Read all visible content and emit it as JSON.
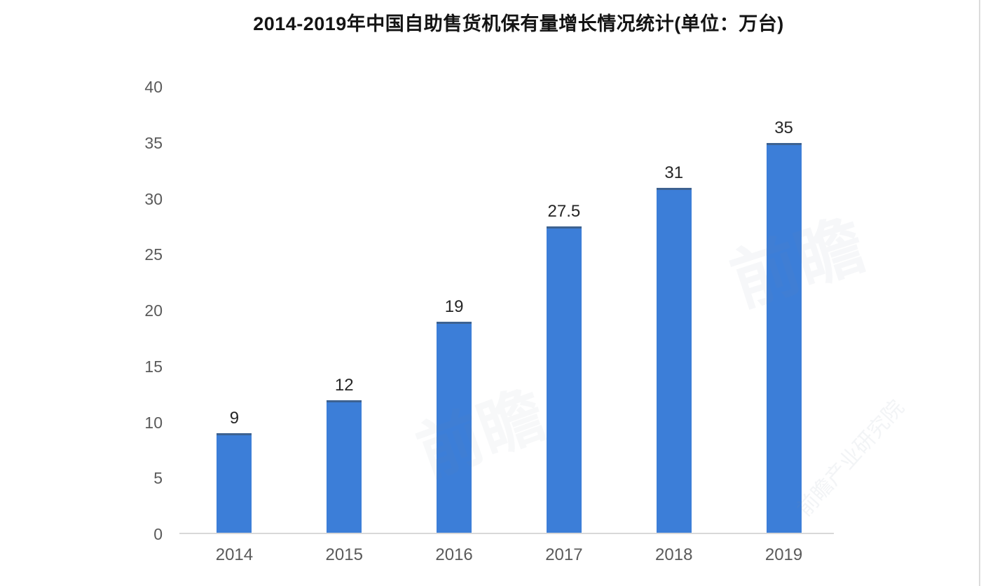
{
  "title": "2014-2019年中国自助售货机保有量增长情况统计(单位：万台)",
  "chart_data": {
    "type": "bar",
    "title": "2014-2019年中国自助售货机保有量增长情况统计(单位：万台)",
    "categories": [
      "2014",
      "2015",
      "2016",
      "2017",
      "2018",
      "2019"
    ],
    "values": [
      9,
      12,
      19,
      27.5,
      31,
      35
    ],
    "value_labels": [
      "9",
      "12",
      "19",
      "27.5",
      "31",
      "35"
    ],
    "xlabel": "",
    "ylabel": "",
    "ylim": [
      0,
      40
    ],
    "y_ticks": [
      0,
      5,
      10,
      15,
      20,
      25,
      30,
      35,
      40
    ],
    "grid": false,
    "bar_color": "#3c7ed8",
    "axis_line_color": "#d8d8d8",
    "tick_label_color": "#5a5a5a",
    "value_label_color": "#262626",
    "title_color": "#141414"
  },
  "watermark": {
    "text": "前瞻",
    "corner_text": "前瞻产业研究院"
  }
}
